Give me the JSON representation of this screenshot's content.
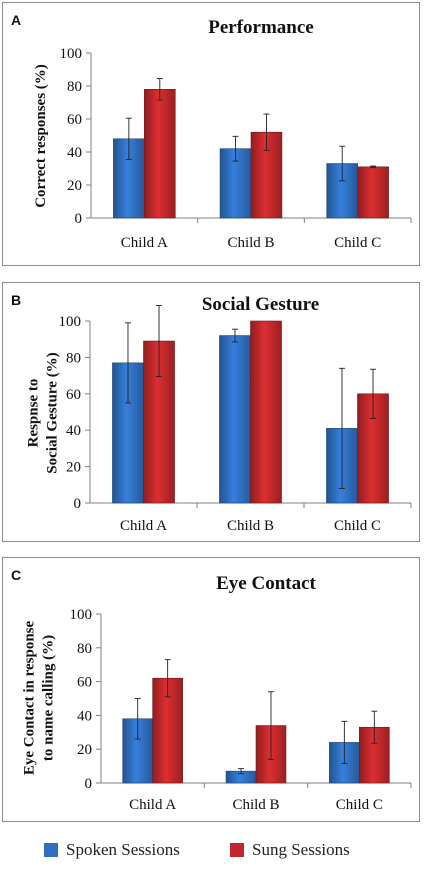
{
  "colors": {
    "spoken": "#2f6fc0",
    "sung": "#c0282b",
    "axis": "#808080"
  },
  "legend": {
    "spoken": "Spoken Sessions",
    "sung": "Sung Sessions"
  },
  "chart_data": [
    {
      "type": "bar",
      "panel_label": "A",
      "title": "Performance",
      "ylabel": [
        "Correct responses (%)"
      ],
      "categories": [
        "Child A",
        "Child B",
        "Child C"
      ],
      "ylim": [
        0,
        100
      ],
      "yticks": [
        0,
        20,
        40,
        60,
        80,
        100
      ],
      "series": [
        {
          "name": "Spoken Sessions",
          "values": [
            48,
            42,
            33
          ],
          "errors": [
            12.5,
            7.5,
            10.5
          ]
        },
        {
          "name": "Sung Sessions",
          "values": [
            78,
            52,
            31
          ],
          "errors": [
            6.5,
            11,
            0.5
          ]
        }
      ]
    },
    {
      "type": "bar",
      "panel_label": "B",
      "title": "Social Gesture",
      "ylabel": [
        "Respnse to",
        "Social Gesture (%)"
      ],
      "categories": [
        "Child A",
        "Child B",
        "Child C"
      ],
      "ylim": [
        0,
        100
      ],
      "yticks": [
        0,
        20,
        40,
        60,
        80,
        100
      ],
      "series": [
        {
          "name": "Spoken Sessions",
          "values": [
            77,
            92,
            41
          ],
          "errors": [
            22,
            3.5,
            33
          ]
        },
        {
          "name": "Sung Sessions",
          "values": [
            89,
            100,
            60
          ],
          "errors": [
            19.5,
            0,
            13.5
          ]
        }
      ]
    },
    {
      "type": "bar",
      "panel_label": "C",
      "title": "Eye Contact",
      "ylabel": [
        "Eye Contact in response",
        "to name calling (%)"
      ],
      "categories": [
        "Child A",
        "Child B",
        "Child C"
      ],
      "ylim": [
        0,
        100
      ],
      "yticks": [
        0,
        20,
        40,
        60,
        80,
        100
      ],
      "series": [
        {
          "name": "Spoken Sessions",
          "values": [
            38,
            7,
            24
          ],
          "errors": [
            12,
            1.5,
            12.5
          ]
        },
        {
          "name": "Sung Sessions",
          "values": [
            62,
            34,
            33
          ],
          "errors": [
            11,
            20,
            9.5
          ]
        }
      ]
    }
  ]
}
